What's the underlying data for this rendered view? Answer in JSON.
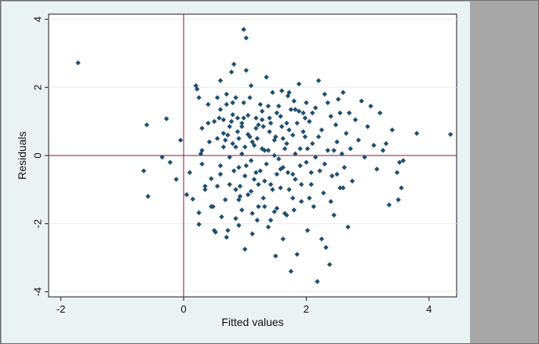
{
  "window": {
    "background_color": "#a7a7a7",
    "graph_region_color": "#eaf2f3"
  },
  "chart_data": {
    "type": "scatter",
    "title": "",
    "xlabel": "Fitted values",
    "ylabel": "Residuals",
    "xlim": [
      -2.2,
      4.45
    ],
    "ylim": [
      -4.15,
      4.15
    ],
    "xticks": [
      -2,
      0,
      2,
      4
    ],
    "yticks": [
      -4,
      -2,
      0,
      2,
      4
    ],
    "xtick_labels": [
      "-2",
      "0",
      "2",
      "4"
    ],
    "ytick_labels": [
      "-4",
      "-2",
      "0",
      "2",
      "4"
    ],
    "grid": true,
    "reference_lines": {
      "x": 0,
      "y": 0,
      "color": "#8b1538"
    },
    "marker": {
      "shape": "diamond",
      "color": "#1f4f6e"
    },
    "series": [
      {
        "points": [
          [
            -1.72,
            2.72
          ],
          [
            -0.65,
            -0.45
          ],
          [
            -0.6,
            0.9
          ],
          [
            -0.58,
            -1.2
          ],
          [
            -0.35,
            -0.05
          ],
          [
            -0.28,
            1.08
          ],
          [
            -0.22,
            -0.2
          ],
          [
            -0.12,
            -0.7
          ],
          [
            -0.05,
            0.45
          ],
          [
            0.05,
            -1.15
          ],
          [
            0.1,
            -0.5
          ],
          [
            0.15,
            -1.28
          ],
          [
            0.2,
            2.05
          ],
          [
            0.22,
            1.95
          ],
          [
            0.25,
            1.7
          ],
          [
            0.25,
            -1.68
          ],
          [
            0.25,
            -2.02
          ],
          [
            0.28,
            0.05
          ],
          [
            0.3,
            0.8
          ],
          [
            0.3,
            -0.25
          ],
          [
            0.35,
            -0.9
          ],
          [
            0.4,
            1.5
          ],
          [
            0.45,
            -1.5
          ],
          [
            0.45,
            -0.68
          ],
          [
            0.5,
            -2.2
          ],
          [
            0.52,
            -2.25
          ],
          [
            0.55,
            1.7
          ],
          [
            0.55,
            0.5
          ],
          [
            0.6,
            2.2
          ],
          [
            0.6,
            1.35
          ],
          [
            0.6,
            -0.3
          ],
          [
            0.65,
            1.05
          ],
          [
            0.65,
            0.25
          ],
          [
            0.68,
            -1.3
          ],
          [
            0.7,
            -2.4
          ],
          [
            0.7,
            1.8
          ],
          [
            0.75,
            0.85
          ],
          [
            0.75,
            -0.05
          ],
          [
            0.78,
            2.45
          ],
          [
            0.8,
            1.2
          ],
          [
            0.8,
            0.35
          ],
          [
            0.82,
            2.68
          ],
          [
            0.85,
            -1.0
          ],
          [
            0.85,
            -1.85
          ],
          [
            0.88,
            1.1
          ],
          [
            0.9,
            0.5
          ],
          [
            0.9,
            -2.05
          ],
          [
            0.92,
            -1.2
          ],
          [
            0.95,
            0.05
          ],
          [
            0.95,
            0.95
          ],
          [
            0.98,
            1.55
          ],
          [
            1.0,
            -2.75
          ],
          [
            1.0,
            -0.6
          ],
          [
            1.02,
            2.5
          ],
          [
            1.05,
            1.18
          ],
          [
            1.05,
            0.62
          ],
          [
            1.1,
            -0.15
          ],
          [
            1.1,
            -1.05
          ],
          [
            1.12,
            -2.3
          ],
          [
            1.15,
            0.3
          ],
          [
            1.18,
            1.1
          ],
          [
            1.2,
            -1.9
          ],
          [
            1.22,
            0.9
          ],
          [
            1.25,
            -0.45
          ],
          [
            1.28,
            1.3
          ],
          [
            1.3,
            -1.25
          ],
          [
            1.32,
            0.15
          ],
          [
            1.35,
            2.3
          ],
          [
            1.38,
            -2.1
          ],
          [
            1.4,
            0.7
          ],
          [
            1.42,
            -0.85
          ],
          [
            1.45,
            1.85
          ],
          [
            1.48,
            0.0
          ],
          [
            1.5,
            -2.95
          ],
          [
            1.52,
            -1.55
          ],
          [
            1.55,
            1.45
          ],
          [
            1.58,
            -0.4
          ],
          [
            1.6,
            0.85
          ],
          [
            1.62,
            -2.45
          ],
          [
            1.65,
            -1.7
          ],
          [
            1.68,
            0.35
          ],
          [
            1.7,
            1.75
          ],
          [
            1.72,
            -1.0
          ],
          [
            1.75,
            -3.4
          ],
          [
            1.78,
            0.6
          ],
          [
            1.8,
            1.6
          ],
          [
            1.82,
            -0.7
          ],
          [
            1.85,
            -2.9
          ],
          [
            1.88,
            2.1
          ],
          [
            1.9,
            0.2
          ],
          [
            1.92,
            -1.35
          ],
          [
            1.95,
            1.25
          ],
          [
            1.98,
            0.55
          ],
          [
            2.0,
            -0.2
          ],
          [
            2.02,
            -2.2
          ],
          [
            2.05,
            1.0
          ],
          [
            2.08,
            -0.85
          ],
          [
            2.1,
            0.35
          ],
          [
            2.12,
            -1.5
          ],
          [
            2.15,
            1.4
          ],
          [
            2.18,
            -3.7
          ],
          [
            2.2,
            2.2
          ],
          [
            2.22,
            -0.45
          ],
          [
            2.25,
            0.75
          ],
          [
            2.28,
            -1.1
          ],
          [
            2.3,
            1.8
          ],
          [
            2.32,
            -2.7
          ],
          [
            2.35,
            0.15
          ],
          [
            2.38,
            -3.2
          ],
          [
            2.4,
            1.15
          ],
          [
            2.42,
            -0.6
          ],
          [
            2.45,
            -1.75
          ],
          [
            2.48,
            0.9
          ],
          [
            2.5,
            0.4
          ],
          [
            2.52,
            1.65
          ],
          [
            2.55,
            -0.95
          ],
          [
            2.58,
            0.05
          ],
          [
            2.6,
            1.85
          ],
          [
            2.62,
            -0.35
          ],
          [
            2.65,
            0.65
          ],
          [
            2.68,
            -2.1
          ],
          [
            2.7,
            1.25
          ],
          [
            2.72,
            0.2
          ],
          [
            2.75,
            -0.75
          ],
          [
            2.8,
            1.05
          ],
          [
            2.85,
            0.45
          ],
          [
            2.9,
            1.6
          ],
          [
            2.95,
            -0.05
          ],
          [
            3.0,
            0.85
          ],
          [
            3.05,
            1.45
          ],
          [
            3.1,
            0.3
          ],
          [
            3.15,
            -0.4
          ],
          [
            3.2,
            1.25
          ],
          [
            3.25,
            0.15
          ],
          [
            3.3,
            0.35
          ],
          [
            3.35,
            -1.45
          ],
          [
            3.4,
            0.75
          ],
          [
            3.48,
            -0.5
          ],
          [
            3.5,
            -1.3
          ],
          [
            3.52,
            -0.2
          ],
          [
            3.55,
            -0.95
          ],
          [
            3.58,
            -0.15
          ],
          [
            3.8,
            0.65
          ],
          [
            4.35,
            0.62
          ],
          [
            0.98,
            3.7
          ],
          [
            1.02,
            3.45
          ],
          [
            0.4,
            0.95
          ],
          [
            0.55,
            -0.9
          ],
          [
            0.7,
            1.5
          ],
          [
            0.72,
            0.6
          ],
          [
            0.85,
            1.7
          ],
          [
            0.9,
            -0.35
          ],
          [
            0.95,
            -1.6
          ],
          [
            1.08,
            1.7
          ],
          [
            1.15,
            -0.7
          ],
          [
            1.2,
            0.5
          ],
          [
            1.25,
            1.5
          ],
          [
            1.3,
            0.85
          ],
          [
            1.35,
            -0.25
          ],
          [
            1.4,
            1.1
          ],
          [
            1.45,
            -1.0
          ],
          [
            1.5,
            0.55
          ],
          [
            1.55,
            -0.1
          ],
          [
            1.6,
            1.9
          ],
          [
            1.65,
            0.2
          ],
          [
            1.7,
            -0.5
          ],
          [
            1.75,
            1.35
          ],
          [
            1.8,
            -1.6
          ],
          [
            1.85,
            0.95
          ],
          [
            1.9,
            -0.3
          ],
          [
            1.95,
            0.7
          ],
          [
            2.0,
            1.55
          ],
          [
            2.05,
            -1.25
          ],
          [
            2.1,
            1.25
          ],
          [
            2.15,
            -0.05
          ],
          [
            2.2,
            0.55
          ],
          [
            2.25,
            -2.45
          ],
          [
            2.3,
            -0.25
          ],
          [
            2.35,
            1.55
          ],
          [
            2.4,
            -1.35
          ],
          [
            2.45,
            0.15
          ],
          [
            2.5,
            -0.55
          ],
          [
            2.55,
            1.25
          ],
          [
            2.6,
            -0.95
          ],
          [
            0.5,
            1.0
          ],
          [
            0.6,
            -0.55
          ],
          [
            0.65,
            0.65
          ],
          [
            0.75,
            -0.85
          ],
          [
            0.8,
            1.55
          ],
          [
            0.85,
            0.25
          ],
          [
            0.9,
            -1.3
          ],
          [
            0.95,
            0.85
          ],
          [
            1.0,
            0.25
          ],
          [
            1.05,
            -1.15
          ],
          [
            1.1,
            2.05
          ],
          [
            1.12,
            0.4
          ],
          [
            1.18,
            -0.5
          ],
          [
            1.22,
            -1.5
          ],
          [
            1.28,
            0.2
          ],
          [
            1.32,
            -0.75
          ],
          [
            1.38,
            1.45
          ],
          [
            1.42,
            -1.9
          ],
          [
            1.48,
            0.45
          ],
          [
            1.52,
            -0.55
          ],
          [
            1.58,
            1.15
          ],
          [
            1.62,
            -0.35
          ],
          [
            1.68,
            0.95
          ],
          [
            1.72,
            1.85
          ],
          [
            1.78,
            -1.25
          ],
          [
            1.82,
            0.05
          ],
          [
            1.88,
            1.3
          ],
          [
            1.92,
            -0.85
          ],
          [
            1.98,
            1.1
          ],
          [
            2.02,
            0.2
          ],
          [
            2.08,
            -0.5
          ],
          [
            0.3,
            0.15
          ],
          [
            0.35,
            -1.0
          ],
          [
            0.42,
            0.4
          ],
          [
            0.48,
            -1.5
          ],
          [
            0.58,
            1.1
          ],
          [
            0.62,
            -1.8
          ],
          [
            0.68,
            0.45
          ],
          [
            0.72,
            -2.2
          ],
          [
            0.78,
            1.0
          ],
          [
            0.82,
            -0.45
          ],
          [
            0.88,
            0.7
          ],
          [
            0.92,
            -0.9
          ],
          [
            0.98,
            1.1
          ],
          [
            1.02,
            -0.3
          ],
          [
            1.08,
            0.55
          ],
          [
            1.12,
            -1.7
          ],
          [
            1.18,
            0.8
          ],
          [
            1.22,
            -0.85
          ],
          [
            1.28,
            1.05
          ],
          [
            1.32,
            -1.5
          ],
          [
            1.38,
            0.15
          ],
          [
            1.42,
            0.95
          ],
          [
            1.48,
            -1.65
          ],
          [
            1.52,
            1.25
          ],
          [
            1.58,
            -0.95
          ],
          [
            1.62,
            0.5
          ],
          [
            1.68,
            -1.75
          ],
          [
            1.72,
            0.75
          ],
          [
            1.78,
            -0.55
          ],
          [
            1.82,
            1.35
          ]
        ]
      }
    ]
  }
}
